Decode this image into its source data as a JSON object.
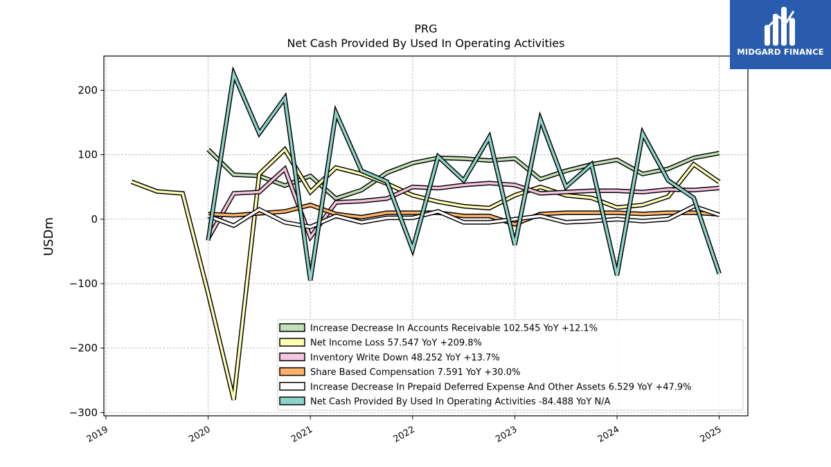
{
  "chart_data": {
    "type": "line",
    "title": "PRG",
    "subtitle": "Net Cash Provided By Used In Operating Activities",
    "ylabel": "USDm",
    "xlabel": "",
    "xlim": [
      2018.98,
      2025.28
    ],
    "ylim": [
      -305,
      253
    ],
    "x_ticks": [
      2019,
      2020,
      2021,
      2022,
      2023,
      2024,
      2025
    ],
    "x_tick_labels": [
      "2019",
      "2020",
      "2021",
      "2022",
      "2023",
      "2024",
      "2025"
    ],
    "y_ticks": [
      -300,
      -200,
      -100,
      0,
      100,
      200
    ],
    "y_tick_labels": [
      "−300",
      "−200",
      "−100",
      "0",
      "100",
      "200"
    ],
    "grid": true,
    "legend_position": "lower-right",
    "series": [
      {
        "name": "Increase Decrease In Accounts Receivable",
        "legend": "Increase Decrease In Accounts Receivable  102.545 YoY +12.1%",
        "color": "#c2e0b8",
        "x": [
          2020.0,
          2020.25,
          2020.5,
          2020.75,
          2021.0,
          2021.25,
          2021.5,
          2021.75,
          2022.0,
          2022.25,
          2022.5,
          2022.75,
          2023.0,
          2023.25,
          2023.5,
          2023.75,
          2024.0,
          2024.25,
          2024.5,
          2024.75,
          2025.0
        ],
        "values": [
          108,
          69,
          67,
          52,
          67,
          32,
          45,
          72,
          87,
          95,
          94,
          91,
          94,
          62,
          75,
          85,
          92,
          70,
          78,
          95,
          102.5
        ]
      },
      {
        "name": "Net Income Loss",
        "legend": "Net Income Loss  57.547 YoY +209.8%",
        "color": "#ffffb3",
        "x": [
          2019.25,
          2019.5,
          2019.75,
          2020.0,
          2020.25,
          2020.5,
          2020.75,
          2021.0,
          2021.25,
          2021.5,
          2021.75,
          2022.0,
          2022.25,
          2022.5,
          2022.75,
          2023.0,
          2023.25,
          2023.5,
          2023.75,
          2024.0,
          2024.25,
          2024.5,
          2024.75,
          2025.0
        ],
        "values": [
          58,
          43,
          40,
          -115,
          -280,
          70,
          108,
          42,
          80,
          70,
          55,
          37,
          27,
          20,
          17,
          37,
          50,
          37,
          33,
          18,
          22,
          35,
          85,
          57.5
        ]
      },
      {
        "name": "Inventory Write Down",
        "legend": "Inventory Write Down  48.252 YoY +13.7%",
        "color": "#f7c6e0",
        "x": [
          2020.0,
          2020.25,
          2020.5,
          2020.75,
          2021.0,
          2021.25,
          2021.5,
          2021.75,
          2022.0,
          2022.25,
          2022.5,
          2022.75,
          2023.0,
          2023.25,
          2023.5,
          2023.75,
          2024.0,
          2024.25,
          2024.5,
          2024.75,
          2025.0
        ],
        "values": [
          -30,
          40,
          42,
          78,
          -28,
          26,
          28,
          32,
          50,
          48,
          53,
          56,
          53,
          40,
          42,
          44,
          44,
          42,
          46,
          45,
          48.3
        ]
      },
      {
        "name": "Share Based Compensation",
        "legend": "Share Based Compensation  7.591 YoY +30.0%",
        "color": "#fdb469",
        "x": [
          2020.0,
          2020.25,
          2020.5,
          2020.75,
          2021.0,
          2021.25,
          2021.5,
          2021.75,
          2022.0,
          2022.25,
          2022.5,
          2022.75,
          2023.0,
          2023.25,
          2023.5,
          2023.75,
          2024.0,
          2024.25,
          2024.5,
          2024.75,
          2025.0
        ],
        "values": [
          8,
          6,
          9,
          12,
          22,
          8,
          3,
          10,
          10,
          10,
          5,
          5,
          -8,
          8,
          10,
          10,
          10,
          8,
          10,
          10,
          7.6
        ]
      },
      {
        "name": "Increase Decrease In Prepaid Deferred Expense And Other Assets",
        "legend": "Increase Decrease In Prepaid Deferred Expense And Other Assets  6.529 YoY +47.9%",
        "color": "#ffffff",
        "x": [
          2020.0,
          2020.25,
          2020.5,
          2020.75,
          2021.0,
          2021.25,
          2021.5,
          2021.75,
          2022.0,
          2022.25,
          2022.5,
          2022.75,
          2023.0,
          2023.25,
          2023.5,
          2023.75,
          2024.0,
          2024.25,
          2024.5,
          2024.75,
          2025.0
        ],
        "values": [
          5,
          -10,
          15,
          -5,
          -12,
          5,
          -5,
          2,
          2,
          12,
          -5,
          -5,
          0,
          5,
          -5,
          -3,
          0,
          -3,
          0,
          20,
          6.5
        ]
      },
      {
        "name": "Net Cash Provided By Used In Operating Activities",
        "legend": "Net Cash Provided By Used In Operating Activities  -84.488 YoY N/A",
        "color": "#8dd3c7",
        "x": [
          2020.0,
          2020.25,
          2020.5,
          2020.75,
          2021.0,
          2021.25,
          2021.5,
          2021.75,
          2022.0,
          2022.25,
          2022.5,
          2022.75,
          2023.0,
          2023.25,
          2023.5,
          2023.75,
          2024.0,
          2024.25,
          2024.5,
          2024.75,
          2025.0
        ],
        "values": [
          -33,
          225,
          133,
          188,
          -95,
          165,
          75,
          58,
          -47,
          97,
          60,
          127,
          -40,
          155,
          50,
          85,
          -87,
          133,
          60,
          33,
          -84.5
        ]
      }
    ]
  },
  "brand": {
    "name": "MIDGARD FINANCE",
    "logo_icon": "midgard-finance-logo-icon",
    "background_color": "#2a5cae"
  }
}
